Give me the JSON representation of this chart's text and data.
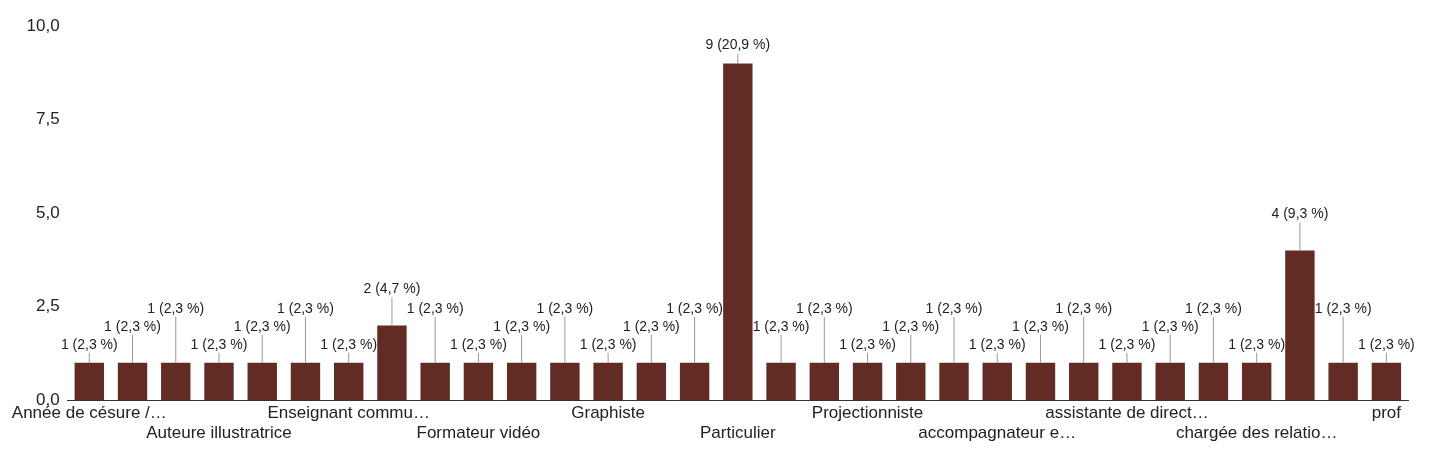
{
  "chart_data": {
    "type": "bar",
    "categories": [
      "Année de césure /…",
      null,
      null,
      "Auteure illustratrice",
      null,
      null,
      "Enseignant commu…",
      null,
      null,
      "Formateur vidéo",
      null,
      null,
      "Graphiste",
      null,
      null,
      "Particulier",
      null,
      null,
      "Projectionniste",
      null,
      null,
      "accompagnateur e…",
      null,
      null,
      "assistante de direct…",
      null,
      null,
      "chargée des relatio…",
      null,
      null,
      "prof"
    ],
    "values": [
      1,
      1,
      1,
      1,
      1,
      1,
      1,
      2,
      1,
      1,
      1,
      1,
      1,
      1,
      1,
      9,
      1,
      1,
      1,
      1,
      1,
      1,
      1,
      1,
      1,
      1,
      1,
      1,
      4,
      1,
      1
    ],
    "value_labels": [
      "1 (2,3 %)",
      "1 (2,3 %)",
      "1 (2,3 %)",
      "1 (2,3 %)",
      "1 (2,3 %)",
      "1 (2,3 %)",
      "1 (2,3 %)",
      "2 (4,7 %)",
      "1 (2,3 %)",
      "1 (2,3 %)",
      "1 (2,3 %)",
      "1 (2,3 %)",
      "1 (2,3 %)",
      "1 (2,3 %)",
      "1 (2,3 %)",
      "9 (20,9 %)",
      "1 (2,3 %)",
      "1 (2,3 %)",
      "1 (2,3 %)",
      "1 (2,3 %)",
      "1 (2,3 %)",
      "1 (2,3 %)",
      "1 (2,3 %)",
      "1 (2,3 %)",
      "1 (2,3 %)",
      "1 (2,3 %)",
      "1 (2,3 %)",
      "1 (2,3 %)",
      "4 (9,3 %)",
      "1 (2,3 %)",
      "1 (2,3 %)"
    ],
    "color": "#622c24",
    "ylim": [
      0,
      10
    ],
    "yticks": [
      {
        "value": 0,
        "label": "0,0"
      },
      {
        "value": 2.5,
        "label": "2,5"
      },
      {
        "value": 5,
        "label": "5,0"
      },
      {
        "value": 7.5,
        "label": "7,5"
      },
      {
        "value": 10,
        "label": "10,0"
      }
    ],
    "grid": false,
    "legend": false
  }
}
